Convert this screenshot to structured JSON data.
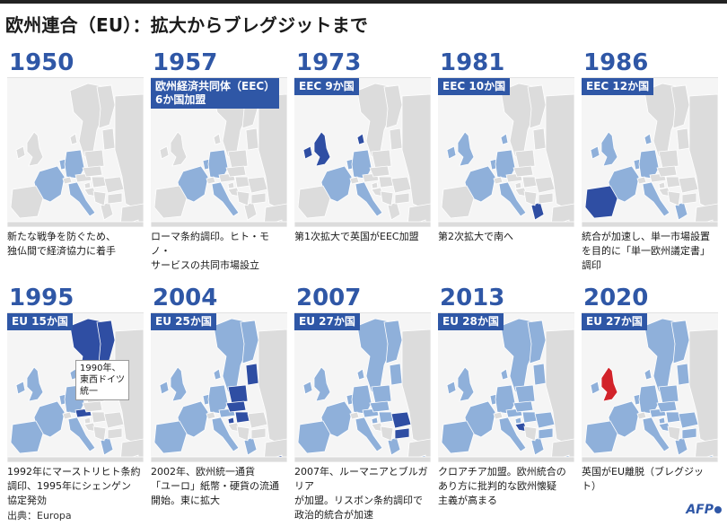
{
  "title": "欧州連合（EU）：拡大からブレグジットまで",
  "colors": {
    "member": "#8fb0da",
    "member_dark": "#2f4ea3",
    "new_member": "#2f4ea3",
    "uk_exit": "#d2232a",
    "land": "#dcdcdc",
    "sea": "#f5f5f5",
    "accent": "#2f57a6"
  },
  "panels": [
    {
      "year": "1950",
      "label": "",
      "caption": [
        "新たな戦争を防ぐため、",
        "独仏間で経済協力に着手"
      ]
    },
    {
      "year": "1957",
      "label": "欧州経済共同体（EEC）",
      "label2": "6か国加盟",
      "caption": [
        "ローマ条約調印。ヒト・モノ・",
        "サービスの共同市場設立"
      ]
    },
    {
      "year": "1973",
      "label": "EEC 9か国",
      "caption": [
        "第1次拡大で英国がEEC加盟"
      ]
    },
    {
      "year": "1981",
      "label": "EEC 10か国",
      "caption": [
        "第2次拡大で南へ"
      ]
    },
    {
      "year": "1986",
      "label": "EEC 12か国",
      "caption": [
        "統合が加速し、単一市場設置",
        "を目的に「単一欧州議定書」",
        "調印"
      ]
    },
    {
      "year": "1995",
      "label": "EU 15か国",
      "caption": [
        "1992年にマーストリヒト条約",
        "調印、1995年にシェンゲン",
        "協定発効"
      ],
      "callout": [
        "1990年、",
        "東西ドイツ",
        "統一"
      ]
    },
    {
      "year": "2004",
      "label": "EU 25か国",
      "caption": [
        "2002年、欧州統一通貨",
        "「ユーロ」紙幣・硬貨の流通",
        "開始。東に拡大"
      ]
    },
    {
      "year": "2007",
      "label": "EU 27か国",
      "caption": [
        "2007年、ルーマニアとブルガリア",
        "が加盟。リスボン条約調印で",
        "政治的統合が加速"
      ]
    },
    {
      "year": "2013",
      "label": "EU 28か国",
      "caption": [
        "クロアチア加盟。欧州統合の",
        "あり方に批判的な欧州懐疑",
        "主義が高まる"
      ]
    },
    {
      "year": "2020",
      "label": "EU 27か国",
      "caption": [
        "英国がEU離脱（ブレグジット）"
      ]
    }
  ],
  "source": "出典：Europa",
  "logo": "AFP"
}
